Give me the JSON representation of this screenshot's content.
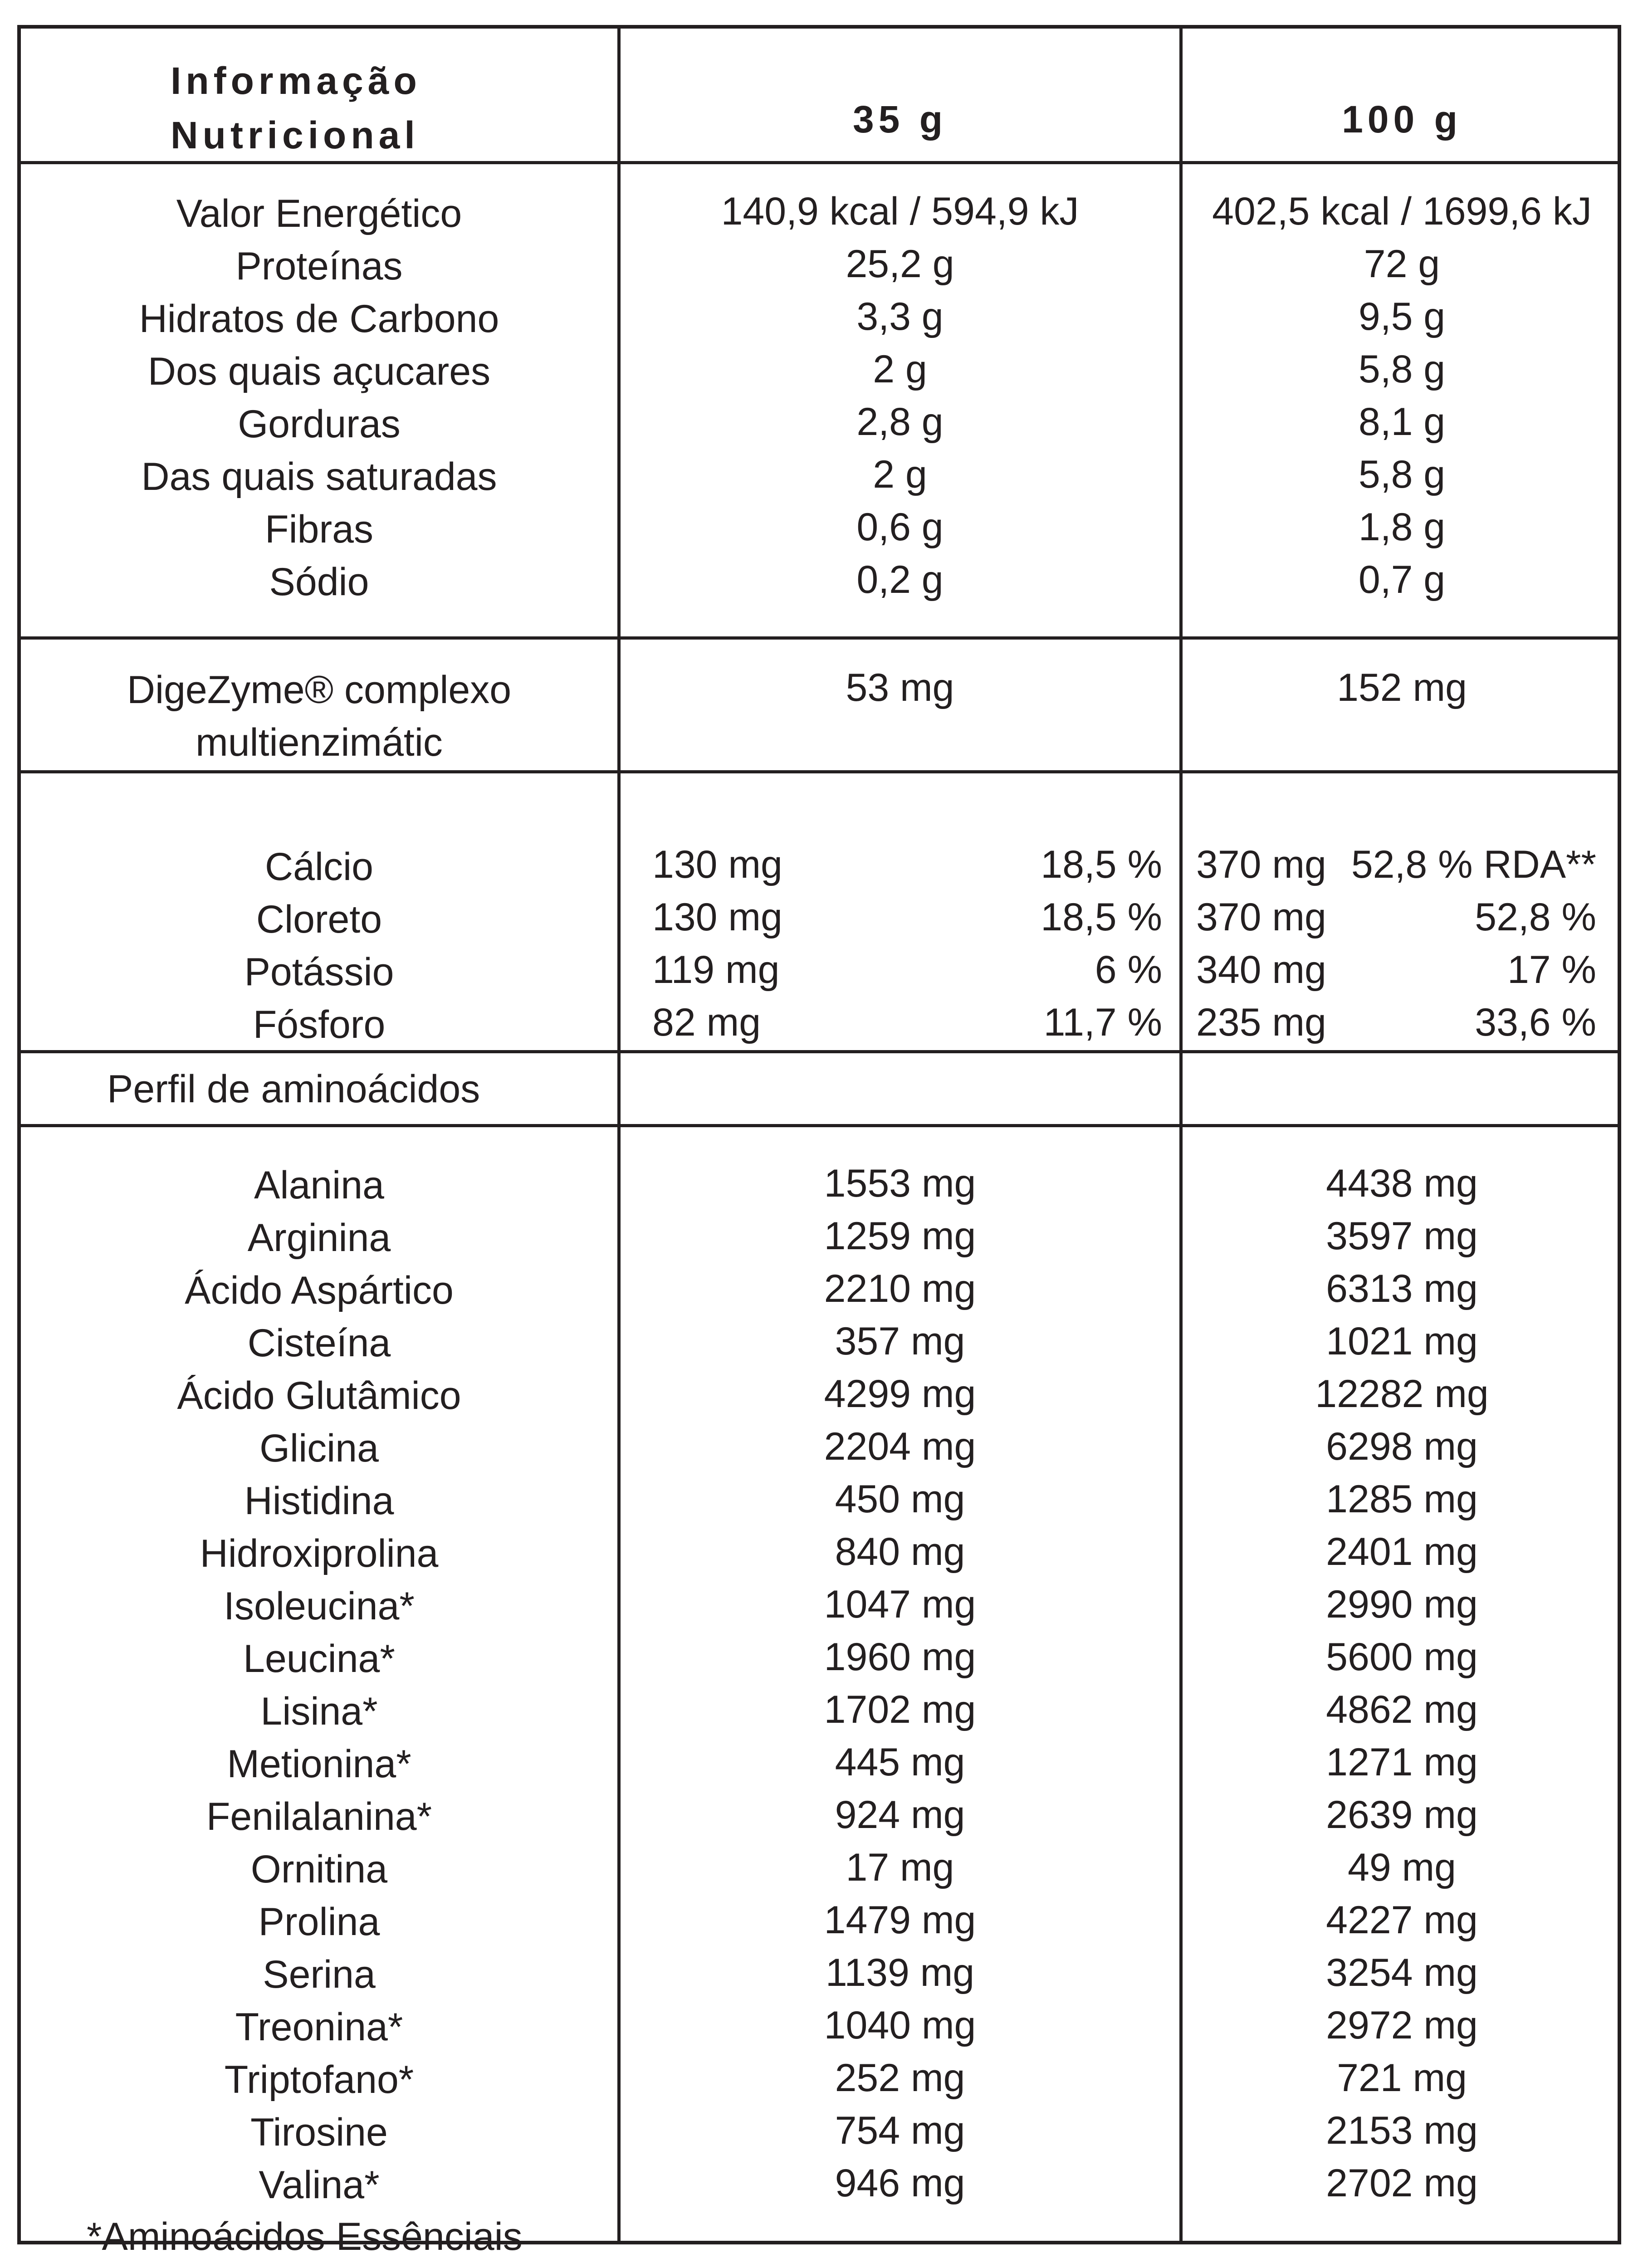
{
  "header": {
    "title_line1": "Informação",
    "title_line2": "Nutricional",
    "col_35": "35 g",
    "col_100": "100 g"
  },
  "nutrition": [
    {
      "name": "Valor Energético",
      "v35": "140,9 kcal / 594,9 kJ",
      "v100": "402,5 kcal / 1699,6 kJ"
    },
    {
      "name": "Proteínas",
      "v35": "25,2 g",
      "v100": "72 g"
    },
    {
      "name": "Hidratos de Carbono",
      "v35": "3,3 g",
      "v100": "9,5 g"
    },
    {
      "name": "Dos quais açucares",
      "v35": "2 g",
      "v100": "5,8 g"
    },
    {
      "name": "Gorduras",
      "v35": "2,8 g",
      "v100": "8,1 g"
    },
    {
      "name": "Das quais saturadas",
      "v35": "2 g",
      "v100": "5,8 g"
    },
    {
      "name": "Fibras",
      "v35": "0,6 g",
      "v100": "1,8 g"
    },
    {
      "name": "Sódio",
      "v35": "0,2 g",
      "v100": "0,7 g"
    }
  ],
  "enzyme": {
    "name_line1": "DigeZyme® complexo",
    "name_line2": "multienzimátic",
    "v35": "53 mg",
    "v100": "152 mg"
  },
  "minerals": [
    {
      "name": "Cálcio",
      "amt35": "130 mg",
      "pct35": "18,5 %",
      "amt100": "370 mg",
      "pct100": "52,8 % RDA**"
    },
    {
      "name": "Cloreto",
      "amt35": "130 mg",
      "pct35": "18,5 %",
      "amt100": "370 mg",
      "pct100": "52,8 %"
    },
    {
      "name": "Potássio",
      "amt35": "119 mg",
      "pct35": "6 %",
      "amt100": "340 mg",
      "pct100": "17 %"
    },
    {
      "name": "Fósforo",
      "amt35": "82 mg",
      "pct35": "11,7 %",
      "amt100": "235 mg",
      "pct100": "33,6 %"
    }
  ],
  "amino_header": "Perfil de aminoácidos",
  "amino_acids": [
    {
      "name": "Alanina",
      "v35": "1553 mg",
      "v100": "4438 mg"
    },
    {
      "name": "Arginina",
      "v35": "1259 mg",
      "v100": "3597 mg"
    },
    {
      "name": "Ácido Aspártico",
      "v35": "2210 mg",
      "v100": "6313 mg"
    },
    {
      "name": "Cisteína",
      "v35": "357 mg",
      "v100": "1021 mg"
    },
    {
      "name": "Ácido Glutâmico",
      "v35": "4299 mg",
      "v100": "12282 mg"
    },
    {
      "name": "Glicina",
      "v35": "2204 mg",
      "v100": "6298 mg"
    },
    {
      "name": "Histidina",
      "v35": "450 mg",
      "v100": "1285 mg"
    },
    {
      "name": "Hidroxiprolina",
      "v35": "840 mg",
      "v100": "2401 mg"
    },
    {
      "name": "Isoleucina*",
      "v35": "1047 mg",
      "v100": "2990 mg"
    },
    {
      "name": "Leucina*",
      "v35": "1960 mg",
      "v100": "5600 mg"
    },
    {
      "name": "Lisina*",
      "v35": "1702 mg",
      "v100": "4862 mg"
    },
    {
      "name": "Metionina*",
      "v35": "445 mg",
      "v100": "1271 mg"
    },
    {
      "name": "Fenilalanina*",
      "v35": "924 mg",
      "v100": "2639 mg"
    },
    {
      "name": "Ornitina",
      "v35": "17 mg",
      "v100": "49 mg"
    },
    {
      "name": "Prolina",
      "v35": "1479 mg",
      "v100": "4227 mg"
    },
    {
      "name": "Serina",
      "v35": "1139 mg",
      "v100": "3254 mg"
    },
    {
      "name": "Treonina*",
      "v35": "1040 mg",
      "v100": "2972 mg"
    },
    {
      "name": "Triptofano*",
      "v35": "252 mg",
      "v100": "721 mg"
    },
    {
      "name": "Tirosine",
      "v35": "754 mg",
      "v100": "2153 mg"
    },
    {
      "name": "Valina*",
      "v35": "946 mg",
      "v100": "2702 mg"
    }
  ],
  "footnote": "*Aminoácidos Essênciais"
}
